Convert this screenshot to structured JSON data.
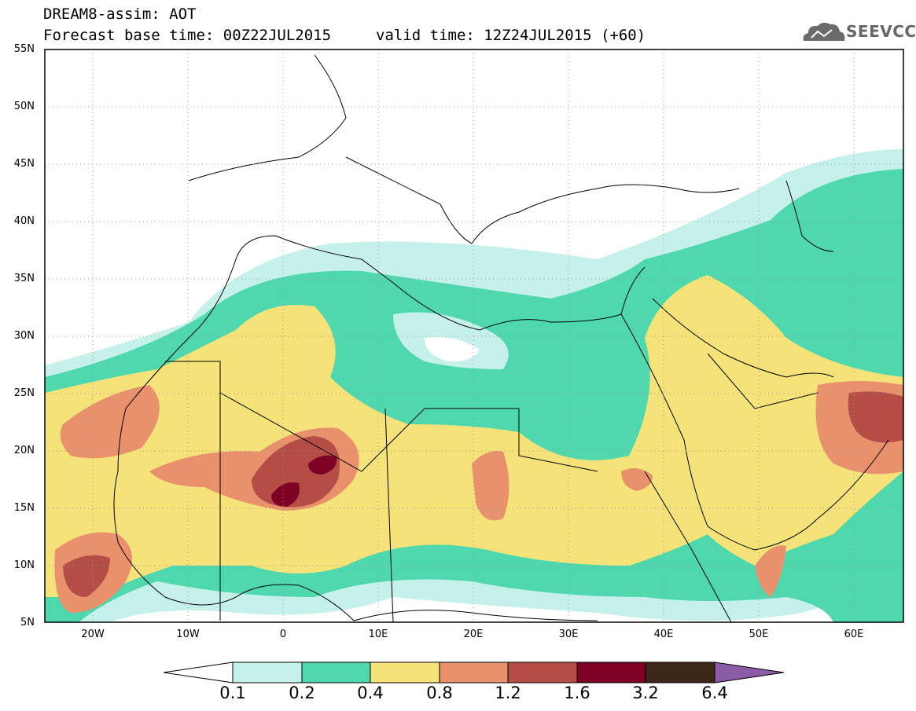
{
  "header": {
    "title": "DREAM8-assim: AOT",
    "base_time": "Forecast base time: 00Z22JUL2015",
    "valid_time": "valid time: 12Z24JUL2015 (+60)",
    "logo_text": "SEEVCCC",
    "logo_icon": "cloud-logo-icon"
  },
  "map": {
    "lat_labels": [
      "55N",
      "50N",
      "45N",
      "40N",
      "35N",
      "30N",
      "25N",
      "20N",
      "15N",
      "10N",
      "5N"
    ],
    "lon_labels": [
      "20W",
      "10W",
      "0",
      "10E",
      "20E",
      "30E",
      "40E",
      "50E",
      "60E"
    ],
    "lat_range": [
      5,
      55
    ],
    "lon_range": [
      -25,
      65
    ]
  },
  "legend": {
    "labels": [
      "0.1",
      "0.2",
      "0.4",
      "0.8",
      "1.2",
      "1.6",
      "3.2",
      "6.4"
    ],
    "colors": [
      "#ffffff",
      "#c6f0ea",
      "#4fd8ad",
      "#f5e37a",
      "#e9906c",
      "#b34d45",
      "#7d0025",
      "#3d2718",
      "#8a5ca8"
    ]
  }
}
